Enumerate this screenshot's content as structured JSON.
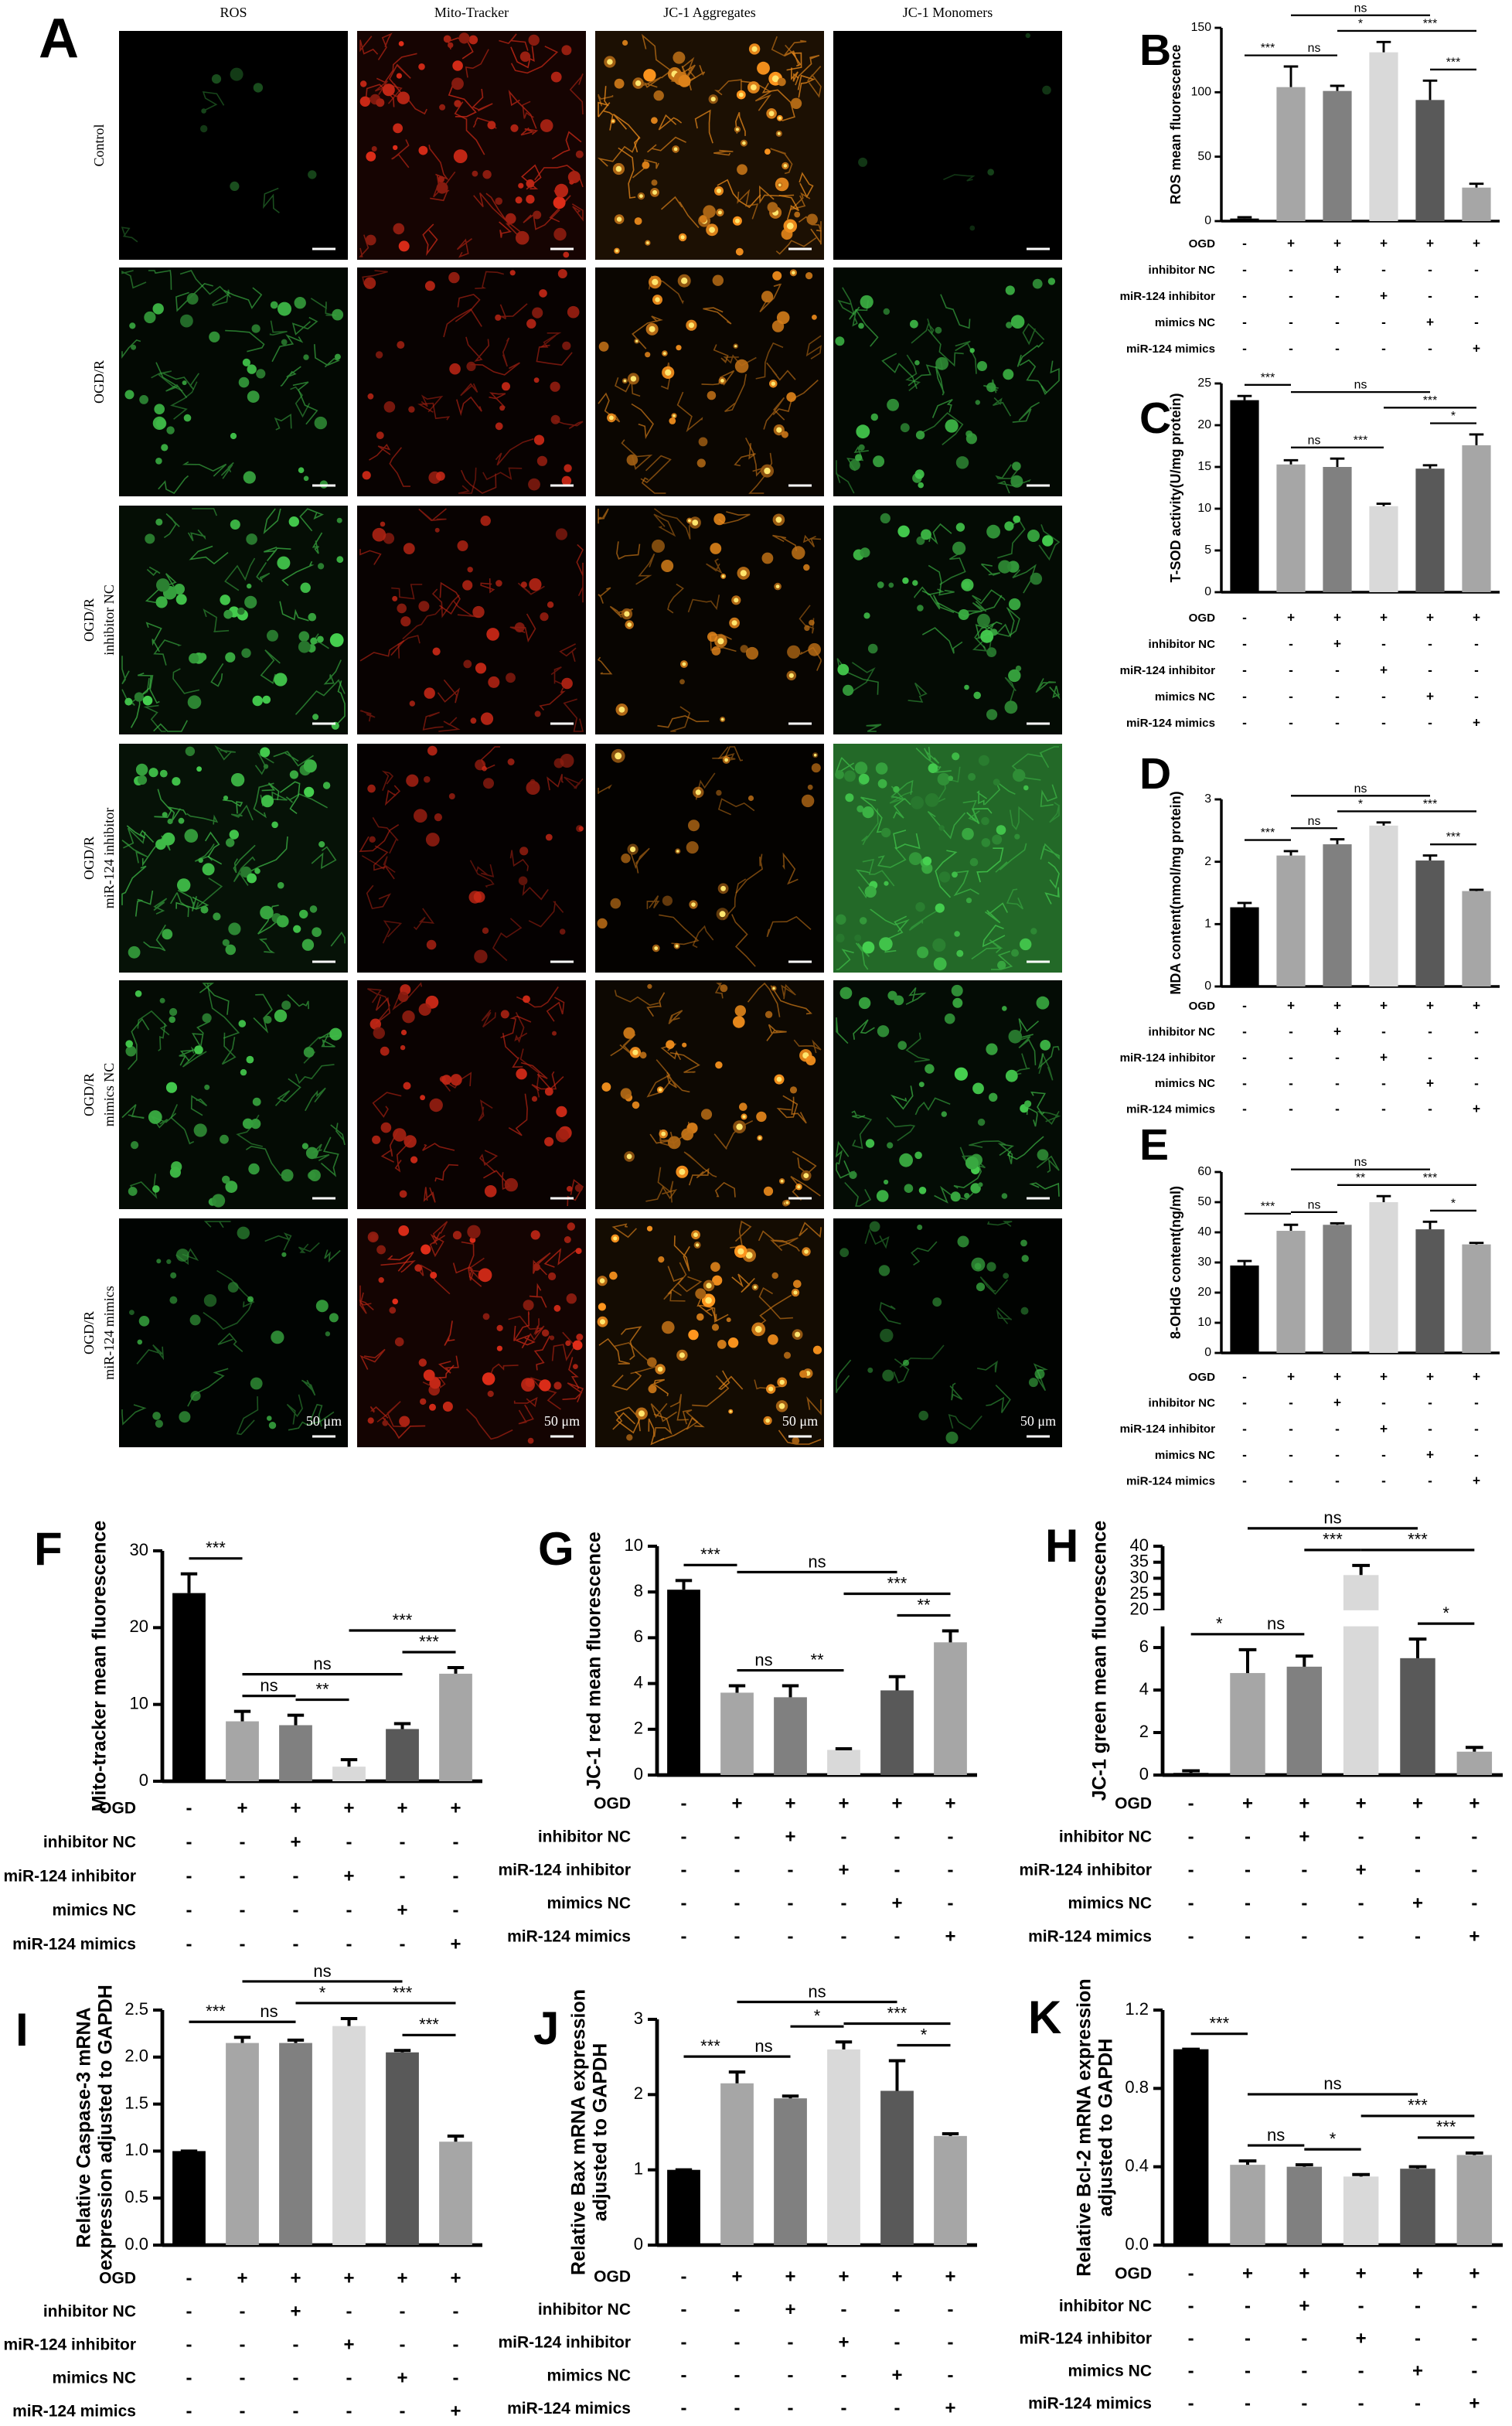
{
  "panel_a": {
    "panel": "A",
    "columns": [
      "ROS",
      "Mito-Tracker",
      "JC-1 Aggregates",
      "JC-1 Monomers"
    ],
    "rows": [
      [
        "Control"
      ],
      [
        "OGD/R"
      ],
      [
        "OGD/R",
        "inhibitor NC"
      ],
      [
        "OGD/R",
        "miR-124 inhibitor"
      ],
      [
        "OGD/R",
        "mimics NC"
      ],
      [
        "OGD/R",
        "miR-124 mimics"
      ]
    ],
    "scale_bar": "50 μm"
  },
  "conditions": {
    "rows": [
      {
        "label": "OGD",
        "signs": [
          "-",
          "+",
          "+",
          "+",
          "+",
          "+"
        ]
      },
      {
        "label": "inhibitor NC",
        "signs": [
          "-",
          "-",
          "+",
          "-",
          "-",
          "-"
        ]
      },
      {
        "label": "miR-124 inhibitor",
        "signs": [
          "-",
          "-",
          "-",
          "+",
          "-",
          "-"
        ]
      },
      {
        "label": "mimics NC",
        "signs": [
          "-",
          "-",
          "-",
          "-",
          "+",
          "-"
        ]
      },
      {
        "label": "miR-124 mimics",
        "signs": [
          "-",
          "-",
          "-",
          "-",
          "-",
          "+"
        ]
      }
    ]
  },
  "chart_data": [
    {
      "type": "bar",
      "panel": "B",
      "ylabel": "ROS mean fluorescence",
      "ylim": [
        0,
        150
      ],
      "yticks": [
        0,
        50,
        100,
        150
      ],
      "values": [
        2,
        104,
        101,
        131,
        94,
        26
      ],
      "errors": [
        1,
        16,
        4,
        8,
        15,
        3
      ],
      "colors": [
        "#000000",
        "#a6a6a6",
        "#808080",
        "#d9d9d9",
        "#595959",
        "#a6a6a6"
      ],
      "annotations": [
        {
          "label": "***",
          "between": [
            0,
            1
          ]
        },
        {
          "label": "ns",
          "between": [
            1,
            2
          ]
        },
        {
          "label": "*",
          "between": [
            2,
            3
          ]
        },
        {
          "label": "***",
          "between": [
            4,
            5
          ]
        },
        {
          "label": "***",
          "between": [
            3,
            5
          ]
        },
        {
          "label": "ns",
          "between": [
            1,
            4
          ]
        }
      ]
    },
    {
      "type": "bar",
      "panel": "C",
      "ylabel": "T-SOD activity(U/mg protein)",
      "ylim": [
        0,
        25
      ],
      "yticks": [
        0,
        5,
        10,
        15,
        20,
        25
      ],
      "values": [
        23,
        15.3,
        15,
        10.3,
        14.8,
        17.6
      ],
      "errors": [
        0.5,
        0.5,
        1,
        0.3,
        0.4,
        1.3
      ],
      "colors": [
        "#000000",
        "#a6a6a6",
        "#808080",
        "#d9d9d9",
        "#595959",
        "#a6a6a6"
      ],
      "annotations": [
        {
          "label": "***",
          "between": [
            0,
            1
          ]
        },
        {
          "label": "ns",
          "between": [
            1,
            2
          ]
        },
        {
          "label": "***",
          "between": [
            2,
            3
          ]
        },
        {
          "label": "*",
          "between": [
            4,
            5
          ]
        },
        {
          "label": "***",
          "between": [
            3,
            5
          ]
        },
        {
          "label": "ns",
          "between": [
            1,
            4
          ]
        }
      ]
    },
    {
      "type": "bar",
      "panel": "D",
      "ylabel": "MDA content(nmol/mg protein)",
      "ylim": [
        0,
        3
      ],
      "yticks": [
        0,
        1,
        2,
        3
      ],
      "values": [
        1.27,
        2.1,
        2.28,
        2.58,
        2.02,
        1.53
      ],
      "errors": [
        0.07,
        0.07,
        0.08,
        0.05,
        0.08,
        0.02
      ],
      "colors": [
        "#000000",
        "#a6a6a6",
        "#808080",
        "#d9d9d9",
        "#595959",
        "#a6a6a6"
      ],
      "annotations": [
        {
          "label": "***",
          "between": [
            0,
            1
          ]
        },
        {
          "label": "ns",
          "between": [
            1,
            2
          ]
        },
        {
          "label": "*",
          "between": [
            2,
            3
          ]
        },
        {
          "label": "***",
          "between": [
            4,
            5
          ]
        },
        {
          "label": "***",
          "between": [
            3,
            5
          ]
        },
        {
          "label": "ns",
          "between": [
            1,
            4
          ]
        }
      ]
    },
    {
      "type": "bar",
      "panel": "E",
      "ylabel": "8-OHdG content(ng/ml)",
      "ylim": [
        0,
        60
      ],
      "yticks": [
        0,
        10,
        20,
        30,
        40,
        50,
        60
      ],
      "values": [
        29,
        40.5,
        42.5,
        50,
        41,
        36
      ],
      "errors": [
        1.5,
        2,
        0.5,
        2,
        2.5,
        0.5
      ],
      "colors": [
        "#000000",
        "#a6a6a6",
        "#808080",
        "#d9d9d9",
        "#595959",
        "#a6a6a6"
      ],
      "annotations": [
        {
          "label": "***",
          "between": [
            0,
            1
          ]
        },
        {
          "label": "ns",
          "between": [
            1,
            2
          ]
        },
        {
          "label": "**",
          "between": [
            2,
            3
          ]
        },
        {
          "label": "*",
          "between": [
            4,
            5
          ]
        },
        {
          "label": "***",
          "between": [
            3,
            5
          ]
        },
        {
          "label": "ns",
          "between": [
            1,
            4
          ]
        }
      ]
    },
    {
      "type": "bar",
      "panel": "F",
      "ylabel": "Mito-tracker mean fluorescence",
      "ylim": [
        0,
        30
      ],
      "yticks": [
        0,
        10,
        20,
        30
      ],
      "values": [
        24.5,
        7.8,
        7.3,
        1.9,
        6.8,
        14
      ],
      "errors": [
        2.5,
        1.3,
        1.3,
        0.9,
        0.7,
        0.8
      ],
      "colors": [
        "#000000",
        "#a6a6a6",
        "#808080",
        "#d9d9d9",
        "#595959",
        "#a6a6a6"
      ],
      "annotations": [
        {
          "label": "***",
          "between": [
            0,
            1
          ]
        },
        {
          "label": "ns",
          "between": [
            1,
            2
          ]
        },
        {
          "label": "**",
          "between": [
            2,
            3
          ]
        },
        {
          "label": "***",
          "between": [
            4,
            5
          ]
        },
        {
          "label": "ns",
          "between": [
            1,
            4
          ]
        },
        {
          "label": "***",
          "between": [
            3,
            5
          ]
        }
      ]
    },
    {
      "type": "bar",
      "panel": "G",
      "ylabel": "JC-1 red mean fluorescence",
      "ylim": [
        0,
        10
      ],
      "yticks": [
        0,
        2,
        4,
        6,
        8,
        10
      ],
      "values": [
        8.1,
        3.6,
        3.4,
        1.1,
        3.7,
        5.8
      ],
      "errors": [
        0.4,
        0.3,
        0.5,
        0.05,
        0.6,
        0.5
      ],
      "colors": [
        "#000000",
        "#a6a6a6",
        "#808080",
        "#d9d9d9",
        "#595959",
        "#a6a6a6"
      ],
      "annotations": [
        {
          "label": "***",
          "between": [
            0,
            1
          ]
        },
        {
          "label": "ns",
          "between": [
            1,
            2
          ]
        },
        {
          "label": "**",
          "between": [
            2,
            3
          ]
        },
        {
          "label": "**",
          "between": [
            4,
            5
          ]
        },
        {
          "label": "***",
          "between": [
            3,
            5
          ]
        },
        {
          "label": "ns",
          "between": [
            1,
            4
          ]
        }
      ]
    },
    {
      "type": "bar",
      "panel": "H",
      "ylabel": "JC-1 green mean fluorescence",
      "ylim": [
        0,
        40
      ],
      "ybreak": [
        7,
        20
      ],
      "yticks": [
        0,
        2,
        4,
        6,
        20,
        25,
        30,
        35,
        40
      ],
      "values": [
        0.1,
        4.8,
        5.1,
        31,
        5.5,
        1.1
      ],
      "errors": [
        0.1,
        1.1,
        0.5,
        3,
        0.9,
        0.2
      ],
      "colors": [
        "#000000",
        "#a6a6a6",
        "#808080",
        "#d9d9d9",
        "#595959",
        "#a6a6a6"
      ],
      "annotations": [
        {
          "label": "*",
          "between": [
            0,
            1
          ]
        },
        {
          "label": "ns",
          "between": [
            1,
            2
          ]
        },
        {
          "label": "*",
          "between": [
            4,
            5
          ]
        },
        {
          "label": "***",
          "between": [
            2,
            3
          ]
        },
        {
          "label": "***",
          "between": [
            3,
            5
          ]
        },
        {
          "label": "ns",
          "between": [
            1,
            4
          ]
        }
      ]
    },
    {
      "type": "bar",
      "panel": "I",
      "ylabel": [
        "Relative Caspase-3 mRNA",
        "expression adjusted to GAPDH"
      ],
      "ylim": [
        0,
        2.5
      ],
      "yticks": [
        {
          "value": 0,
          "label": "0.0"
        },
        0.5,
        {
          "value": 1,
          "label": "1.0"
        },
        1.5,
        {
          "value": 2,
          "label": "2.0"
        },
        2.5
      ],
      "values": [
        1.0,
        2.15,
        2.15,
        2.33,
        2.05,
        1.1
      ],
      "errors": [
        0,
        0.06,
        0.03,
        0.08,
        0.02,
        0.06
      ],
      "colors": [
        "#000000",
        "#a6a6a6",
        "#808080",
        "#d9d9d9",
        "#595959",
        "#a6a6a6"
      ],
      "annotations": [
        {
          "label": "***",
          "between": [
            0,
            1
          ]
        },
        {
          "label": "ns",
          "between": [
            1,
            2
          ]
        },
        {
          "label": "*",
          "between": [
            2,
            3
          ]
        },
        {
          "label": "***",
          "between": [
            4,
            5
          ]
        },
        {
          "label": "***",
          "between": [
            3,
            5
          ]
        },
        {
          "label": "ns",
          "between": [
            1,
            4
          ]
        }
      ]
    },
    {
      "type": "bar",
      "panel": "J",
      "ylabel": [
        "Relative Bax mRNA expression",
        "adjusted to GAPDH"
      ],
      "ylim": [
        0,
        3
      ],
      "yticks": [
        0,
        1,
        2,
        3
      ],
      "values": [
        1.0,
        2.15,
        1.95,
        2.6,
        2.05,
        1.45
      ],
      "errors": [
        0,
        0.15,
        0.03,
        0.1,
        0.4,
        0.03
      ],
      "colors": [
        "#000000",
        "#a6a6a6",
        "#808080",
        "#d9d9d9",
        "#595959",
        "#a6a6a6"
      ],
      "annotations": [
        {
          "label": "***",
          "between": [
            0,
            1
          ]
        },
        {
          "label": "ns",
          "between": [
            1,
            2
          ]
        },
        {
          "label": "*",
          "between": [
            2,
            3
          ]
        },
        {
          "label": "*",
          "between": [
            4,
            5
          ]
        },
        {
          "label": "***",
          "between": [
            3,
            5
          ]
        },
        {
          "label": "ns",
          "between": [
            1,
            4
          ]
        }
      ]
    },
    {
      "type": "bar",
      "panel": "K",
      "ylabel": [
        "Relative Bcl-2 mRNA expression",
        "adjusted to GAPDH"
      ],
      "ylim": [
        0,
        1.2
      ],
      "yticks": [
        {
          "value": 0,
          "label": "0.0"
        },
        0.4,
        0.8,
        1.2
      ],
      "values": [
        1.0,
        0.41,
        0.4,
        0.35,
        0.39,
        0.46
      ],
      "errors": [
        0,
        0.02,
        0.01,
        0.01,
        0.01,
        0.01
      ],
      "colors": [
        "#000000",
        "#a6a6a6",
        "#808080",
        "#d9d9d9",
        "#595959",
        "#a6a6a6"
      ],
      "annotations": [
        {
          "label": "***",
          "between": [
            0,
            1
          ]
        },
        {
          "label": "ns",
          "between": [
            1,
            2
          ]
        },
        {
          "label": "*",
          "between": [
            2,
            3
          ]
        },
        {
          "label": "***",
          "between": [
            4,
            5
          ]
        },
        {
          "label": "***",
          "between": [
            3,
            5
          ]
        },
        {
          "label": "ns",
          "between": [
            1,
            4
          ]
        }
      ]
    }
  ]
}
